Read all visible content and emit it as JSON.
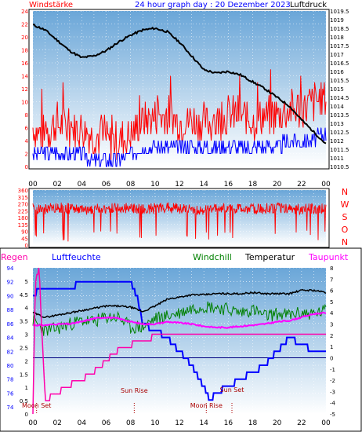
{
  "colors": {
    "wind": "#ff0000",
    "gust_bar": "#0000ff",
    "pressure": "#000000",
    "direction": "#ff0000",
    "rain": "#ff00aa",
    "humidity": "#0000ff",
    "windchill": "#008000",
    "temperature": "#000000",
    "dewpoint": "#ff00ff",
    "sky_top": "#6aa6d8",
    "sky_bottom": "#ffffff"
  },
  "header": {
    "left": "Windstärke",
    "title": "24 hour graph day : 20 Dezember 2023",
    "right": "Luftdruck"
  },
  "legend2": {
    "rain": "Regen",
    "humidity": "Luftfeuchte",
    "windchill": "Windchill",
    "temperature": "Temperatur",
    "dewpoint": "Taupunkt"
  },
  "compass_labels": [
    "N",
    "W",
    "S",
    "O",
    "N"
  ],
  "chart_data": [
    {
      "type": "line",
      "title": "24 hour graph day : 20 Dezember 2023",
      "x_tick_labels": [
        "00",
        "02",
        "04",
        "06",
        "08",
        "10",
        "12",
        "14",
        "16",
        "18",
        "20",
        "22",
        "00"
      ],
      "y_left_label": "Windstärke",
      "y_left_ticks": [
        "0",
        "2",
        "4",
        "6",
        "8",
        "10",
        "12",
        "14",
        "16",
        "18",
        "20",
        "22",
        "24"
      ],
      "y_left_range": [
        0,
        24
      ],
      "y_right_label": "Luftdruck",
      "y_right_ticks": [
        "1010.5",
        "1011",
        "1011.5",
        "1012",
        "1012.5",
        "1013",
        "1013.5",
        "1014",
        "1014.5",
        "1015",
        "1015.5",
        "1016",
        "1016.5",
        "1017",
        "1017.5",
        "1018",
        "1018.5",
        "1019",
        "1019.5"
      ],
      "y_right_range": [
        1010.5,
        1019.5
      ],
      "series": [
        {
          "key": "wind",
          "axis": "left",
          "x": [
            0,
            1,
            2,
            3,
            4,
            5,
            6,
            7,
            8,
            9,
            10,
            11,
            12,
            13,
            14,
            15,
            16,
            17,
            18,
            19,
            20,
            21,
            22,
            23,
            24
          ],
          "y": [
            5,
            4,
            6,
            5,
            5,
            4,
            3,
            3,
            4,
            6,
            7,
            7,
            6,
            6,
            6,
            6,
            7,
            7,
            6,
            7,
            7,
            8,
            8,
            9,
            10
          ]
        },
        {
          "key": "gust",
          "axis": "left",
          "x": [
            0,
            1,
            2,
            3,
            4,
            5,
            6,
            7,
            8,
            9,
            10,
            11,
            12,
            13,
            14,
            15,
            16,
            17,
            18,
            19,
            20,
            21,
            22,
            23,
            24
          ],
          "y": [
            2,
            2,
            2,
            2,
            2,
            1,
            1,
            1,
            2,
            3,
            3,
            3,
            3,
            3,
            3,
            3,
            3,
            3,
            3,
            3,
            3,
            4,
            4,
            4,
            5
          ]
        },
        {
          "key": "pressure",
          "axis": "right",
          "x": [
            0,
            1,
            2,
            3,
            4,
            5,
            6,
            7,
            8,
            9,
            10,
            11,
            12,
            13,
            14,
            15,
            16,
            17,
            18,
            19,
            20,
            21,
            22,
            23,
            24
          ],
          "y": [
            1018.7,
            1018.4,
            1017.8,
            1017.2,
            1016.8,
            1016.9,
            1017.2,
            1017.7,
            1018.1,
            1018.4,
            1018.5,
            1018.3,
            1017.7,
            1016.9,
            1016.1,
            1015.9,
            1016.0,
            1015.8,
            1015.4,
            1015.0,
            1014.5,
            1014.0,
            1013.2,
            1012.5,
            1011.8
          ]
        }
      ]
    },
    {
      "type": "line",
      "y_left_ticks": [
        "0",
        "45",
        "90",
        "135",
        "180",
        "225",
        "270",
        "315",
        "360"
      ],
      "y_left_range": [
        0,
        360
      ],
      "y_right_ticks": [
        "N",
        "W",
        "S",
        "O",
        "N"
      ],
      "series": [
        {
          "key": "direction",
          "axis": "left",
          "x": [
            0,
            1,
            2,
            3,
            4,
            5,
            6,
            7,
            8,
            9,
            10,
            11,
            12,
            13,
            14,
            15,
            16,
            17,
            18,
            19,
            20,
            21,
            22,
            23,
            24
          ],
          "y": [
            240,
            235,
            245,
            240,
            230,
            235,
            240,
            245,
            240,
            235,
            240,
            245,
            240,
            235,
            230,
            240,
            245,
            240,
            235,
            240,
            245,
            240,
            235,
            240,
            240
          ]
        }
      ]
    },
    {
      "type": "line",
      "x_tick_labels": [
        "00",
        "02",
        "04",
        "06",
        "08",
        "10",
        "12",
        "14",
        "16",
        "18",
        "20",
        "22",
        "00"
      ],
      "y_left_ticks": [
        "74",
        "76",
        "78",
        "80",
        "82",
        "84",
        "86",
        "88",
        "90",
        "92",
        "94"
      ],
      "y_left_range": [
        73,
        94
      ],
      "y_rain_ticks": [
        "0",
        "0.5",
        "1",
        "1.5",
        "2",
        "2.5",
        "3",
        "3.5",
        "4",
        "4.5",
        "5"
      ],
      "y_rain_range": [
        0,
        5.5
      ],
      "y_right_ticks": [
        "-5",
        "-4",
        "-3",
        "-2",
        "-1",
        "0",
        "1",
        "2",
        "3",
        "4",
        "5",
        "6",
        "7",
        "8"
      ],
      "y_right_range": [
        -5,
        8
      ],
      "annotations": [
        {
          "text": "Moon Set",
          "x": 0.3
        },
        {
          "text": "Sun Rise",
          "x": 8.3
        },
        {
          "text": "Moon Rise",
          "x": 14.2
        },
        {
          "text": "Sun Set",
          "x": 16.3
        }
      ],
      "series": [
        {
          "key": "rain",
          "axis": "rain",
          "x": [
            0,
            0.2,
            0.5,
            1,
            2,
            3,
            4,
            5,
            6,
            7,
            8,
            9,
            10,
            11,
            12,
            13,
            14,
            15,
            16,
            17,
            18,
            19,
            20,
            21,
            22,
            23,
            24
          ],
          "y": [
            0,
            5,
            5.5,
            0.5,
            0.8,
            1.1,
            1.3,
            1.6,
            2.0,
            2.4,
            2.6,
            2.8,
            2.9,
            2.9,
            3.0,
            3.0,
            3.0,
            3.0,
            3.0,
            3.0,
            3.0,
            3.0,
            3.0,
            3.0,
            3.0,
            3.0,
            3.0
          ]
        },
        {
          "key": "humidity",
          "axis": "left",
          "x": [
            0,
            0.5,
            1,
            2,
            3,
            4,
            5,
            6,
            7,
            8,
            8.5,
            9,
            10,
            11,
            12,
            13,
            14,
            14.5,
            15,
            16,
            17,
            18,
            19,
            20,
            21,
            22,
            23,
            24
          ],
          "y": [
            90,
            91,
            91,
            91,
            91,
            92,
            92,
            92,
            92,
            92,
            90,
            86,
            85,
            84,
            82,
            80,
            77,
            75,
            76,
            77,
            78,
            79,
            80,
            82,
            84,
            83,
            82,
            82
          ]
        },
        {
          "key": "windchill",
          "axis": "right",
          "x": [
            0,
            1,
            2,
            3,
            4,
            5,
            6,
            7,
            8,
            9,
            10,
            11,
            12,
            13,
            14,
            15,
            16,
            17,
            18,
            19,
            20,
            21,
            22,
            23,
            24
          ],
          "y": [
            3.3,
            2.4,
            2.6,
            3.0,
            3.3,
            3.2,
            3.6,
            3.6,
            2.7,
            2.7,
            3.5,
            3.7,
            4.0,
            4.4,
            4.6,
            4.5,
            4.3,
            4.0,
            4.3,
            3.7,
            3.9,
            3.8,
            4.0,
            3.9,
            4.2
          ]
        },
        {
          "key": "temperature",
          "axis": "right",
          "x": [
            0,
            1,
            2,
            3,
            4,
            5,
            6,
            7,
            8,
            9,
            10,
            11,
            12,
            13,
            14,
            15,
            16,
            17,
            18,
            19,
            20,
            21,
            22,
            23,
            24
          ],
          "y": [
            4.0,
            3.6,
            3.8,
            4.0,
            4.2,
            4.4,
            4.6,
            4.6,
            4.5,
            4.1,
            4.6,
            5.2,
            5.4,
            5.6,
            5.6,
            5.7,
            5.7,
            5.7,
            5.8,
            5.7,
            5.7,
            5.7,
            6.0,
            6.0,
            5.8
          ]
        },
        {
          "key": "dewpoint",
          "axis": "right",
          "x": [
            0,
            1,
            2,
            3,
            4,
            5,
            6,
            7,
            8,
            9,
            10,
            11,
            12,
            13,
            14,
            15,
            16,
            17,
            18,
            19,
            20,
            21,
            22,
            23,
            24
          ],
          "y": [
            2.9,
            2.9,
            3.0,
            3.0,
            3.2,
            3.5,
            3.6,
            3.5,
            3.2,
            3.0,
            3.0,
            3.2,
            3.1,
            3.0,
            2.8,
            2.7,
            2.7,
            2.8,
            2.9,
            3.0,
            3.2,
            3.3,
            3.6,
            3.9,
            4.0
          ]
        }
      ]
    }
  ]
}
